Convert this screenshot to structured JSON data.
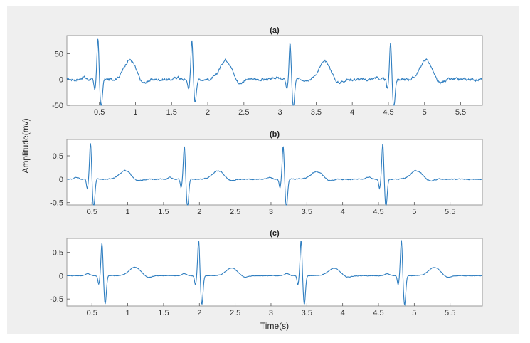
{
  "figure": {
    "ylabel": "Amplitude(mv)",
    "xlabel": "Time(s)",
    "line_color": "#2f7ec0",
    "background_color": "#efefef",
    "axes_color": "#ffffff"
  },
  "chart_data": [
    {
      "type": "line",
      "title": "(a)",
      "xlabel": "",
      "ylabel": "",
      "xlim": [
        0.05,
        5.8
      ],
      "ylim": [
        -50,
        85
      ],
      "xticks": [
        0.5,
        1,
        1.5,
        2,
        2.5,
        3,
        3.5,
        4,
        4.5,
        5,
        5.5
      ],
      "yticks": [
        -50,
        0,
        50
      ],
      "grid": false,
      "beats": [
        {
          "r_peak_time": 0.48,
          "r_amplitude": 79,
          "s_amplitude": -50,
          "t_time": 0.92,
          "t_amplitude": 38
        },
        {
          "r_peak_time": 1.78,
          "r_amplitude": 77,
          "s_amplitude": -40,
          "t_time": 2.25,
          "t_amplitude": 38
        },
        {
          "r_peak_time": 3.14,
          "r_amplitude": 70,
          "s_amplitude": -50,
          "t_time": 3.62,
          "t_amplitude": 34
        },
        {
          "r_peak_time": 4.53,
          "r_amplitude": 73,
          "s_amplitude": -50,
          "t_time": 5.02,
          "t_amplitude": 38
        }
      ],
      "baseline": 0,
      "noise_level": 5
    },
    {
      "type": "line",
      "title": "(b)",
      "xlabel": "",
      "ylabel": "",
      "xlim": [
        0.15,
        5.95
      ],
      "ylim": [
        -0.55,
        0.85
      ],
      "xticks": [
        0.5,
        1,
        1.5,
        2,
        2.5,
        3,
        3.5,
        4,
        4.5,
        5,
        5.5
      ],
      "yticks": [
        -0.5,
        0,
        0.5
      ],
      "grid": false,
      "beats": [
        {
          "r_peak_time": 0.48,
          "r_amplitude": 0.79,
          "s_amplitude": -0.55,
          "t_time": 0.96,
          "t_amplitude": 0.18
        },
        {
          "r_peak_time": 1.79,
          "r_amplitude": 0.72,
          "s_amplitude": -0.55,
          "t_time": 2.26,
          "t_amplitude": 0.18
        },
        {
          "r_peak_time": 3.17,
          "r_amplitude": 0.72,
          "s_amplitude": -0.55,
          "t_time": 3.64,
          "t_amplitude": 0.16
        },
        {
          "r_peak_time": 4.56,
          "r_amplitude": 0.77,
          "s_amplitude": -0.55,
          "t_time": 5.03,
          "t_amplitude": 0.18
        }
      ],
      "baseline": 0,
      "noise_level": 0.02
    },
    {
      "type": "line",
      "title": "(c)",
      "xlabel": "Time(s)",
      "ylabel": "",
      "xlim": [
        0.15,
        5.95
      ],
      "ylim": [
        -0.65,
        0.8
      ],
      "xticks": [
        0.5,
        1,
        1.5,
        2,
        2.5,
        3,
        3.5,
        4,
        4.5,
        5,
        5.5
      ],
      "yticks": [
        -0.5,
        0,
        0.5
      ],
      "grid": false,
      "beats": [
        {
          "r_peak_time": 0.64,
          "r_amplitude": 0.72,
          "s_amplitude": -0.55,
          "t_time": 1.1,
          "t_amplitude": 0.18
        },
        {
          "r_peak_time": 1.99,
          "r_amplitude": 0.77,
          "s_amplitude": -0.57,
          "t_time": 2.45,
          "t_amplitude": 0.16
        },
        {
          "r_peak_time": 3.42,
          "r_amplitude": 0.77,
          "s_amplitude": -0.57,
          "t_time": 3.88,
          "t_amplitude": 0.16
        },
        {
          "r_peak_time": 4.82,
          "r_amplitude": 0.77,
          "s_amplitude": -0.57,
          "t_time": 5.28,
          "t_amplitude": 0.18
        }
      ],
      "baseline": 0,
      "noise_level": 0.01
    }
  ]
}
